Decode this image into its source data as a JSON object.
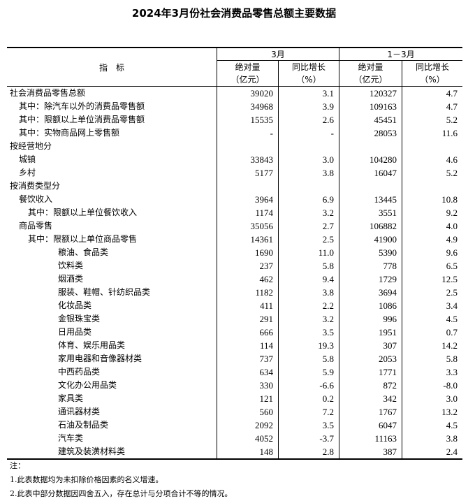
{
  "title": "2024年3月份社会消费品零售总额主要数据",
  "header": {
    "indicator": "指　标",
    "period1": "3月",
    "period2": "1－3月",
    "abs": "绝对量",
    "abs_unit": "（亿元）",
    "growth": "同比增长",
    "growth_unit": "（%）"
  },
  "rows": [
    {
      "label": "社会消费品零售总额",
      "indent": 0,
      "m_abs": "39020",
      "m_g": "3.1",
      "q_abs": "120327",
      "q_g": "4.7"
    },
    {
      "label": "其中：除汽车以外的消费品零售额",
      "indent": 1,
      "m_abs": "34968",
      "m_g": "3.9",
      "q_abs": "109163",
      "q_g": "4.7"
    },
    {
      "label": "其中：限额以上单位消费品零售额",
      "indent": 1,
      "m_abs": "15535",
      "m_g": "2.6",
      "q_abs": "45451",
      "q_g": "5.2"
    },
    {
      "label": "其中：实物商品网上零售额",
      "indent": 1,
      "m_abs": "-",
      "m_g": "-",
      "q_abs": "28053",
      "q_g": "11.6"
    },
    {
      "label": "按经营地分",
      "indent": 0,
      "m_abs": "",
      "m_g": "",
      "q_abs": "",
      "q_g": ""
    },
    {
      "label": "城镇",
      "indent": 1,
      "m_abs": "33843",
      "m_g": "3.0",
      "q_abs": "104280",
      "q_g": "4.6"
    },
    {
      "label": "乡村",
      "indent": 1,
      "m_abs": "5177",
      "m_g": "3.8",
      "q_abs": "16047",
      "q_g": "5.2"
    },
    {
      "label": "按消费类型分",
      "indent": 0,
      "m_abs": "",
      "m_g": "",
      "q_abs": "",
      "q_g": ""
    },
    {
      "label": "餐饮收入",
      "indent": 1,
      "m_abs": "3964",
      "m_g": "6.9",
      "q_abs": "13445",
      "q_g": "10.8"
    },
    {
      "label": "其中：限额以上单位餐饮收入",
      "indent": 2,
      "m_abs": "1174",
      "m_g": "3.2",
      "q_abs": "3551",
      "q_g": "9.2"
    },
    {
      "label": "商品零售",
      "indent": 1,
      "m_abs": "35056",
      "m_g": "2.7",
      "q_abs": "106882",
      "q_g": "4.0"
    },
    {
      "label": "其中：限额以上单位商品零售",
      "indent": 2,
      "m_abs": "14361",
      "m_g": "2.5",
      "q_abs": "41900",
      "q_g": "4.9"
    },
    {
      "label": "粮油、食品类",
      "indent": 3,
      "m_abs": "1690",
      "m_g": "11.0",
      "q_abs": "5390",
      "q_g": "9.6"
    },
    {
      "label": "饮料类",
      "indent": 3,
      "m_abs": "237",
      "m_g": "5.8",
      "q_abs": "778",
      "q_g": "6.5"
    },
    {
      "label": "烟酒类",
      "indent": 3,
      "m_abs": "462",
      "m_g": "9.4",
      "q_abs": "1729",
      "q_g": "12.5"
    },
    {
      "label": "服装、鞋帽、针纺织品类",
      "indent": 3,
      "m_abs": "1182",
      "m_g": "3.8",
      "q_abs": "3694",
      "q_g": "2.5"
    },
    {
      "label": "化妆品类",
      "indent": 3,
      "m_abs": "411",
      "m_g": "2.2",
      "q_abs": "1086",
      "q_g": "3.4"
    },
    {
      "label": "金银珠宝类",
      "indent": 3,
      "m_abs": "291",
      "m_g": "3.2",
      "q_abs": "996",
      "q_g": "4.5"
    },
    {
      "label": "日用品类",
      "indent": 3,
      "m_abs": "666",
      "m_g": "3.5",
      "q_abs": "1951",
      "q_g": "0.7"
    },
    {
      "label": "体育、娱乐用品类",
      "indent": 3,
      "m_abs": "114",
      "m_g": "19.3",
      "q_abs": "307",
      "q_g": "14.2"
    },
    {
      "label": "家用电器和音像器材类",
      "indent": 3,
      "m_abs": "737",
      "m_g": "5.8",
      "q_abs": "2053",
      "q_g": "5.8"
    },
    {
      "label": "中西药品类",
      "indent": 3,
      "m_abs": "634",
      "m_g": "5.9",
      "q_abs": "1771",
      "q_g": "3.3"
    },
    {
      "label": "文化办公用品类",
      "indent": 3,
      "m_abs": "330",
      "m_g": "-6.6",
      "q_abs": "872",
      "q_g": "-8.0"
    },
    {
      "label": "家具类",
      "indent": 3,
      "m_abs": "121",
      "m_g": "0.2",
      "q_abs": "342",
      "q_g": "3.0"
    },
    {
      "label": "通讯器材类",
      "indent": 3,
      "m_abs": "560",
      "m_g": "7.2",
      "q_abs": "1767",
      "q_g": "13.2"
    },
    {
      "label": "石油及制品类",
      "indent": 3,
      "m_abs": "2092",
      "m_g": "3.5",
      "q_abs": "6047",
      "q_g": "4.5"
    },
    {
      "label": "汽车类",
      "indent": 3,
      "m_abs": "4052",
      "m_g": "-3.7",
      "q_abs": "11163",
      "q_g": "3.8"
    },
    {
      "label": "建筑及装潢材料类",
      "indent": 3,
      "m_abs": "148",
      "m_g": "2.8",
      "q_abs": "387",
      "q_g": "2.4"
    }
  ],
  "notes": {
    "heading": "注：",
    "items": [
      "1.此表数据均为未扣除价格因素的名义增速。",
      "2.此表中部分数据因四舍五入，存在总计与分项合计不等的情况。"
    ]
  }
}
